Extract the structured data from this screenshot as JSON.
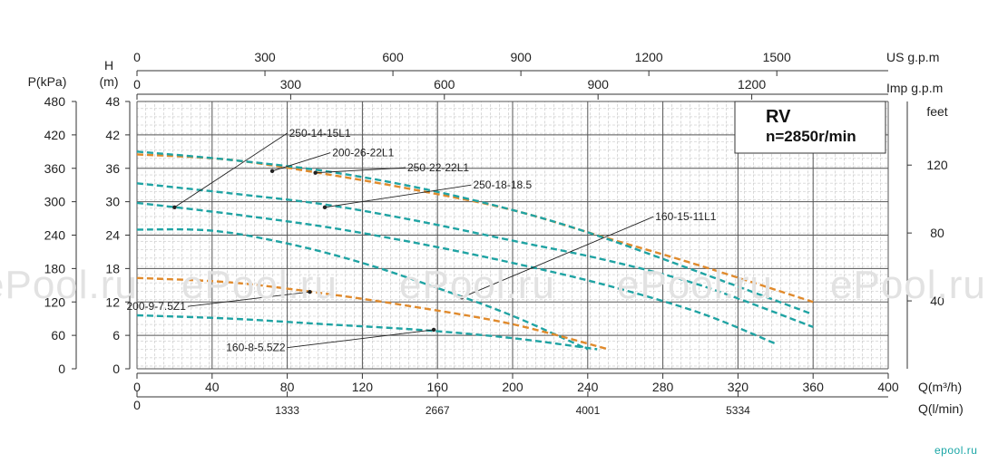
{
  "chart_data": {
    "type": "line",
    "title": "RV",
    "subtitle": "n=2850r/min",
    "xlabel": "Q(m³/h)",
    "xlim": [
      0,
      400
    ],
    "ylim": [
      0,
      48
    ],
    "grid": true,
    "x_ticks": [
      "0",
      "40",
      "80",
      "120",
      "160",
      "200",
      "240",
      "280",
      "320",
      "360",
      "400"
    ],
    "y_ticks_head": [
      "0",
      "6",
      "12",
      "18",
      "24",
      "30",
      "36",
      "42",
      "48"
    ],
    "y_ticks_pressure": [
      "0",
      "60",
      "120",
      "180",
      "240",
      "300",
      "360",
      "420",
      "480"
    ],
    "y_ticks_feet": [
      "40",
      "80",
      "120"
    ],
    "head_label_line1": "H",
    "head_label_line2": "(m)",
    "pressure_label": "P(kPa)",
    "feet_label": "feet",
    "us_gpm_label": "US g.p.m",
    "us_gpm_ticks": [
      "0",
      "300",
      "600",
      "900",
      "1200",
      "1500"
    ],
    "imp_gpm_label": "Imp g.p.m",
    "imp_gpm_ticks": [
      "0",
      "300",
      "600",
      "900",
      "1200"
    ],
    "lpm_label": "Q(l/min)",
    "lpm_ticks": [
      "0",
      "1333",
      "2667",
      "4001",
      "5334"
    ],
    "series": [
      {
        "name": "250-14-15L1",
        "color": "#e08a2c",
        "points": [
          [
            0,
            38.5
          ],
          [
            50,
            37.5
          ],
          [
            100,
            35
          ],
          [
            150,
            32
          ],
          [
            200,
            28.5
          ],
          [
            250,
            23.5
          ],
          [
            300,
            18.5
          ],
          [
            360,
            12
          ]
        ],
        "label_pos": [
          20,
          29
        ],
        "text_pos": [
          80,
          42.3
        ]
      },
      {
        "name": "200-26-22L1",
        "color": "#1fa3a3",
        "points": [
          [
            0,
            39
          ],
          [
            50,
            37.5
          ],
          [
            100,
            35.5
          ],
          [
            150,
            32.5
          ],
          [
            200,
            28.5
          ],
          [
            240,
            24.5
          ],
          [
            290,
            18.5
          ],
          [
            358,
            10
          ]
        ],
        "label_pos": [
          72,
          35.5
        ],
        "text_pos": [
          103,
          38.8
        ]
      },
      {
        "name": "250-22-22L1",
        "color": "#1fa3a3",
        "points": [
          [
            0,
            33.3
          ],
          [
            50,
            31.5
          ],
          [
            100,
            29.5
          ],
          [
            150,
            26.5
          ],
          [
            200,
            23
          ],
          [
            250,
            19.5
          ],
          [
            300,
            15
          ],
          [
            360,
            7.5
          ]
        ],
        "label_pos": [
          95,
          35.2
        ],
        "text_pos": [
          143,
          36.1
        ]
      },
      {
        "name": "250-18-18.5",
        "color": "#1fa3a3",
        "points": [
          [
            0,
            29.8
          ],
          [
            50,
            27.8
          ],
          [
            100,
            25.5
          ],
          [
            150,
            22.5
          ],
          [
            200,
            19
          ],
          [
            250,
            15
          ],
          [
            300,
            10
          ],
          [
            340,
            4.5
          ]
        ],
        "label_pos": [
          100,
          29
        ],
        "text_pos": [
          178,
          33
        ]
      },
      {
        "name": "160-15-11L1",
        "color": "#1fa3a3",
        "points": [
          [
            0,
            25
          ],
          [
            40,
            24.8
          ],
          [
            80,
            22.5
          ],
          [
            120,
            19
          ],
          [
            160,
            14.5
          ],
          [
            200,
            9.5
          ],
          [
            240,
            3.5
          ]
        ],
        "label_pos": [
          173,
          12.8
        ],
        "text_pos": [
          275,
          27.3
        ]
      },
      {
        "name": "200-9-7.5Z1",
        "color": "#e08a2c",
        "points": [
          [
            0,
            16.3
          ],
          [
            50,
            15.5
          ],
          [
            100,
            13.5
          ],
          [
            150,
            11
          ],
          [
            200,
            8
          ],
          [
            250,
            3.6
          ]
        ],
        "label_pos": [
          92,
          13.8
        ],
        "text_pos": [
          27,
          11.2
        ]
      },
      {
        "name": "160-8-5.5Z2",
        "color": "#1fa3a3",
        "points": [
          [
            0,
            9.6
          ],
          [
            50,
            9
          ],
          [
            100,
            8
          ],
          [
            150,
            7
          ],
          [
            200,
            5.5
          ],
          [
            245,
            3.5
          ]
        ],
        "label_pos": [
          158,
          7
        ],
        "text_pos": [
          80,
          3.8
        ]
      }
    ]
  },
  "watermark_text": "ePool.ru",
  "brand_text": "epool.ru"
}
